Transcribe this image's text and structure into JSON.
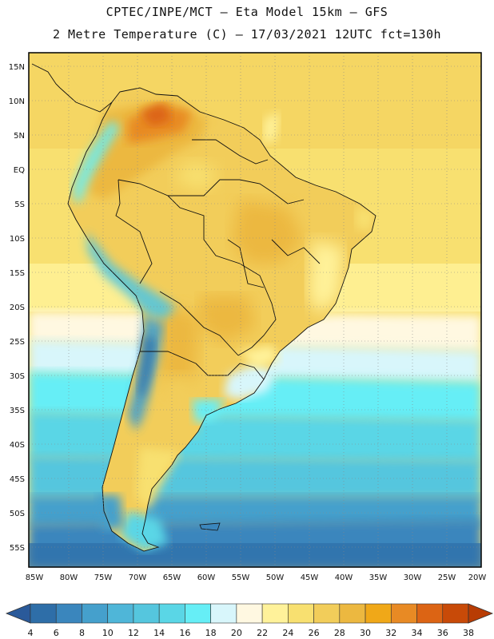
{
  "title": {
    "line1": "CPTEC/INPE/MCT –  Eta Model 15km – GFS",
    "line2": "2 Metre Temperature (C) – 17/03/2021 12UTC fct=130h"
  },
  "map": {
    "region": "South America",
    "lon_range": [
      -85,
      -20
    ],
    "lat_range": [
      -57,
      17
    ],
    "lon_ticks": [
      "85W",
      "80W",
      "75W",
      "70W",
      "65W",
      "60W",
      "55W",
      "50W",
      "45W",
      "40W",
      "35W",
      "30W",
      "25W",
      "20W"
    ],
    "lat_ticks": [
      "15N",
      "10N",
      "5N",
      "EQ",
      "5S",
      "10S",
      "15S",
      "20S",
      "25S",
      "30S",
      "35S",
      "40S",
      "45S",
      "50S",
      "55S"
    ]
  },
  "colorbar": {
    "labels": [
      "4",
      "6",
      "8",
      "10",
      "12",
      "14",
      "16",
      "18",
      "20",
      "22",
      "24",
      "26",
      "28",
      "30",
      "32",
      "34",
      "36",
      "38"
    ],
    "colors": [
      "#2e6ea8",
      "#3a86bd",
      "#45a0cc",
      "#4fb6d8",
      "#55c6de",
      "#5ad6e6",
      "#66eef6",
      "#d8f6fb",
      "#fff8e1",
      "#fff29a",
      "#f8e070",
      "#f2cd5a",
      "#ecb840",
      "#f0a818",
      "#e88a24",
      "#dc6414",
      "#c84a08"
    ],
    "below_color": "#2a5a9a",
    "above_color": "#b83c04"
  }
}
